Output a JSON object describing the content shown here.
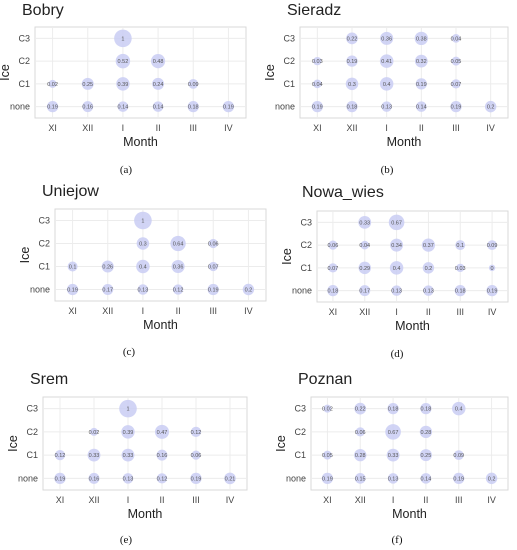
{
  "figure": {
    "captions": [
      "(a)",
      "(b)",
      "(c)",
      "(d)",
      "(e)",
      "(f)"
    ]
  },
  "chart_data": [
    {
      "type": "scatter",
      "title": "Bobry",
      "xlabel": "Month",
      "ylabel": "Ice",
      "x_categories": [
        "XI",
        "XII",
        "I",
        "II",
        "III",
        "IV"
      ],
      "y_categories": [
        "none",
        "C1",
        "C2",
        "C3"
      ],
      "grid": true,
      "points": [
        {
          "x": "I",
          "y": "C3",
          "value": 1
        },
        {
          "x": "I",
          "y": "C2",
          "value": 0.52
        },
        {
          "x": "II",
          "y": "C2",
          "value": 0.48
        },
        {
          "x": "XI",
          "y": "C1",
          "value": 0.02
        },
        {
          "x": "XII",
          "y": "C1",
          "value": 0.25
        },
        {
          "x": "I",
          "y": "C1",
          "value": 0.39
        },
        {
          "x": "II",
          "y": "C1",
          "value": 0.24
        },
        {
          "x": "III",
          "y": "C1",
          "value": 0.09
        },
        {
          "x": "XI",
          "y": "none",
          "value": 0.19
        },
        {
          "x": "XII",
          "y": "none",
          "value": 0.16
        },
        {
          "x": "I",
          "y": "none",
          "value": 0.14
        },
        {
          "x": "II",
          "y": "none",
          "value": 0.14
        },
        {
          "x": "III",
          "y": "none",
          "value": 0.18
        },
        {
          "x": "IV",
          "y": "none",
          "value": 0.19
        }
      ]
    },
    {
      "type": "scatter",
      "title": "Sieradz",
      "xlabel": "Month",
      "ylabel": "Ice",
      "x_categories": [
        "XI",
        "XII",
        "I",
        "II",
        "III",
        "IV"
      ],
      "y_categories": [
        "none",
        "C1",
        "C2",
        "C3"
      ],
      "grid": true,
      "points": [
        {
          "x": "XII",
          "y": "C3",
          "value": 0.22
        },
        {
          "x": "I",
          "y": "C3",
          "value": 0.36
        },
        {
          "x": "II",
          "y": "C3",
          "value": 0.38
        },
        {
          "x": "III",
          "y": "C3",
          "value": 0.04
        },
        {
          "x": "XI",
          "y": "C2",
          "value": 0.03
        },
        {
          "x": "XII",
          "y": "C2",
          "value": 0.19
        },
        {
          "x": "I",
          "y": "C2",
          "value": 0.41
        },
        {
          "x": "II",
          "y": "C2",
          "value": 0.32
        },
        {
          "x": "III",
          "y": "C2",
          "value": 0.05
        },
        {
          "x": "XI",
          "y": "C1",
          "value": 0.04
        },
        {
          "x": "XII",
          "y": "C1",
          "value": 0.3
        },
        {
          "x": "I",
          "y": "C1",
          "value": 0.4
        },
        {
          "x": "II",
          "y": "C1",
          "value": 0.19
        },
        {
          "x": "III",
          "y": "C1",
          "value": 0.07
        },
        {
          "x": "XI",
          "y": "none",
          "value": 0.19
        },
        {
          "x": "XII",
          "y": "none",
          "value": 0.18
        },
        {
          "x": "I",
          "y": "none",
          "value": 0.13
        },
        {
          "x": "II",
          "y": "none",
          "value": 0.14
        },
        {
          "x": "III",
          "y": "none",
          "value": 0.19
        },
        {
          "x": "IV",
          "y": "none",
          "value": 0.2
        }
      ]
    },
    {
      "type": "scatter",
      "title": "Uniejow",
      "xlabel": "Month",
      "ylabel": "Ice",
      "x_categories": [
        "XI",
        "XII",
        "I",
        "II",
        "III",
        "IV"
      ],
      "y_categories": [
        "none",
        "C1",
        "C2",
        "C3"
      ],
      "grid": true,
      "points": [
        {
          "x": "I",
          "y": "C3",
          "value": 1
        },
        {
          "x": "I",
          "y": "C2",
          "value": 0.3
        },
        {
          "x": "II",
          "y": "C2",
          "value": 0.64
        },
        {
          "x": "III",
          "y": "C2",
          "value": 0.06
        },
        {
          "x": "XI",
          "y": "C1",
          "value": 0.1
        },
        {
          "x": "XII",
          "y": "C1",
          "value": 0.26
        },
        {
          "x": "I",
          "y": "C1",
          "value": 0.4
        },
        {
          "x": "II",
          "y": "C1",
          "value": 0.36
        },
        {
          "x": "III",
          "y": "C1",
          "value": 0.07
        },
        {
          "x": "XI",
          "y": "none",
          "value": 0.19
        },
        {
          "x": "XII",
          "y": "none",
          "value": 0.17
        },
        {
          "x": "I",
          "y": "none",
          "value": 0.13
        },
        {
          "x": "II",
          "y": "none",
          "value": 0.12
        },
        {
          "x": "III",
          "y": "none",
          "value": 0.19
        },
        {
          "x": "IV",
          "y": "none",
          "value": 0.2
        }
      ]
    },
    {
      "type": "scatter",
      "title": "Nowa_wies",
      "xlabel": "Month",
      "ylabel": "Ice",
      "x_categories": [
        "XI",
        "XII",
        "I",
        "II",
        "III",
        "IV"
      ],
      "y_categories": [
        "none",
        "C1",
        "C2",
        "C3"
      ],
      "grid": true,
      "points": [
        {
          "x": "XII",
          "y": "C3",
          "value": 0.33
        },
        {
          "x": "I",
          "y": "C3",
          "value": 0.67
        },
        {
          "x": "XI",
          "y": "C2",
          "value": 0.06
        },
        {
          "x": "XII",
          "y": "C2",
          "value": 0.04
        },
        {
          "x": "I",
          "y": "C2",
          "value": 0.34
        },
        {
          "x": "II",
          "y": "C2",
          "value": 0.37
        },
        {
          "x": "III",
          "y": "C2",
          "value": 0.1
        },
        {
          "x": "IV",
          "y": "C2",
          "value": 0.09
        },
        {
          "x": "XI",
          "y": "C1",
          "value": 0.07
        },
        {
          "x": "XII",
          "y": "C1",
          "value": 0.29
        },
        {
          "x": "I",
          "y": "C1",
          "value": 0.4
        },
        {
          "x": "II",
          "y": "C1",
          "value": 0.2
        },
        {
          "x": "III",
          "y": "C1",
          "value": 0.03
        },
        {
          "x": "IV",
          "y": "C1",
          "value": 0
        },
        {
          "x": "XI",
          "y": "none",
          "value": 0.18
        },
        {
          "x": "XII",
          "y": "none",
          "value": 0.17
        },
        {
          "x": "I",
          "y": "none",
          "value": 0.13
        },
        {
          "x": "II",
          "y": "none",
          "value": 0.13
        },
        {
          "x": "III",
          "y": "none",
          "value": 0.18
        },
        {
          "x": "IV",
          "y": "none",
          "value": 0.19
        }
      ]
    },
    {
      "type": "scatter",
      "title": "Srem",
      "xlabel": "Month",
      "ylabel": "Ice",
      "x_categories": [
        "XI",
        "XII",
        "I",
        "II",
        "III",
        "IV"
      ],
      "y_categories": [
        "none",
        "C1",
        "C2",
        "C3"
      ],
      "grid": true,
      "points": [
        {
          "x": "I",
          "y": "C3",
          "value": 1
        },
        {
          "x": "XII",
          "y": "C2",
          "value": 0.02
        },
        {
          "x": "I",
          "y": "C2",
          "value": 0.39
        },
        {
          "x": "II",
          "y": "C2",
          "value": 0.47
        },
        {
          "x": "III",
          "y": "C2",
          "value": 0.12
        },
        {
          "x": "XI",
          "y": "C1",
          "value": 0.12
        },
        {
          "x": "XII",
          "y": "C1",
          "value": 0.33
        },
        {
          "x": "I",
          "y": "C1",
          "value": 0.33
        },
        {
          "x": "II",
          "y": "C1",
          "value": 0.16
        },
        {
          "x": "III",
          "y": "C1",
          "value": 0.06
        },
        {
          "x": "XI",
          "y": "none",
          "value": 0.19
        },
        {
          "x": "XII",
          "y": "none",
          "value": 0.16
        },
        {
          "x": "I",
          "y": "none",
          "value": 0.13
        },
        {
          "x": "II",
          "y": "none",
          "value": 0.12
        },
        {
          "x": "III",
          "y": "none",
          "value": 0.19
        },
        {
          "x": "IV",
          "y": "none",
          "value": 0.21
        }
      ]
    },
    {
      "type": "scatter",
      "title": "Poznan",
      "xlabel": "Month",
      "ylabel": "Ice",
      "x_categories": [
        "XI",
        "XII",
        "I",
        "II",
        "III",
        "IV"
      ],
      "y_categories": [
        "none",
        "C1",
        "C2",
        "C3"
      ],
      "grid": true,
      "points": [
        {
          "x": "XI",
          "y": "C3",
          "value": 0.02
        },
        {
          "x": "XII",
          "y": "C3",
          "value": 0.22
        },
        {
          "x": "I",
          "y": "C3",
          "value": 0.18
        },
        {
          "x": "II",
          "y": "C3",
          "value": 0.18
        },
        {
          "x": "III",
          "y": "C3",
          "value": 0.4
        },
        {
          "x": "XII",
          "y": "C2",
          "value": 0.06
        },
        {
          "x": "I",
          "y": "C2",
          "value": 0.67
        },
        {
          "x": "II",
          "y": "C2",
          "value": 0.28
        },
        {
          "x": "XI",
          "y": "C1",
          "value": 0.05
        },
        {
          "x": "XII",
          "y": "C1",
          "value": 0.28
        },
        {
          "x": "I",
          "y": "C1",
          "value": 0.33
        },
        {
          "x": "II",
          "y": "C1",
          "value": 0.25
        },
        {
          "x": "III",
          "y": "C1",
          "value": 0.09
        },
        {
          "x": "XI",
          "y": "none",
          "value": 0.19
        },
        {
          "x": "XII",
          "y": "none",
          "value": 0.15
        },
        {
          "x": "I",
          "y": "none",
          "value": 0.13
        },
        {
          "x": "II",
          "y": "none",
          "value": 0.14
        },
        {
          "x": "III",
          "y": "none",
          "value": 0.19
        },
        {
          "x": "IV",
          "y": "none",
          "value": 0.2
        }
      ]
    }
  ]
}
